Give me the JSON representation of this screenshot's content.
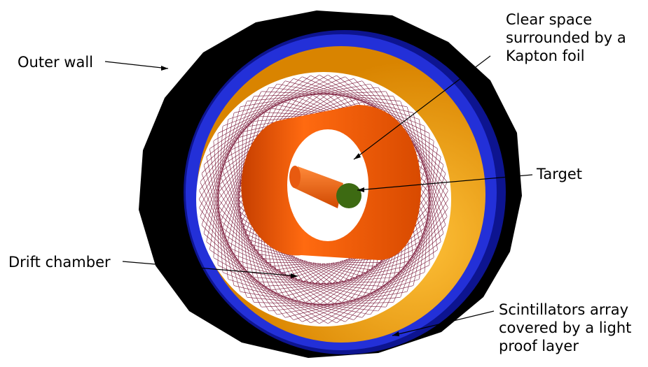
{
  "labels": {
    "outer_wall": "Outer wall",
    "clear_space": "Clear space\nsurrounded by a\nKapton foil",
    "target": "Target",
    "drift_chamber": "Drift chamber",
    "scintillators": "Scintillators array\ncovered by a light\nproof layer"
  },
  "colors": {
    "outer_wall": "#000000",
    "blue_ring": "#1a24c8",
    "blue_ring_dark": "#0a0f7a",
    "scintillator": "#f0a21a",
    "drift_wire": "#7a1838",
    "kapton_cylinder": "#ff5a00",
    "target_cap": "#3d6a12"
  }
}
